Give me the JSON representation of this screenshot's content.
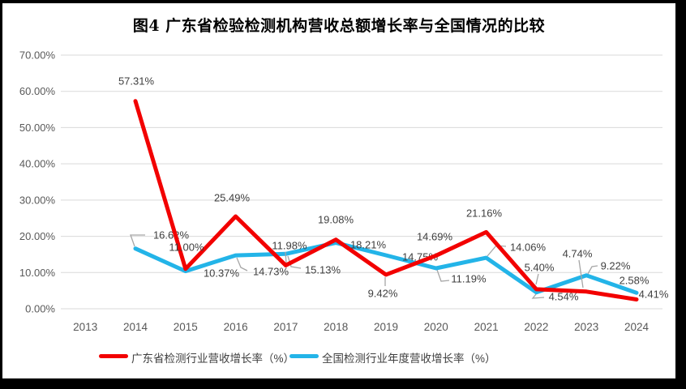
{
  "title": "图4  广东省检验检测机构营收总额增长率与全国情况的比较",
  "chart_data": {
    "type": "line",
    "categories": [
      "2013",
      "2014",
      "2015",
      "2016",
      "2017",
      "2018",
      "2019",
      "2020",
      "2021",
      "2022",
      "2023",
      "2024"
    ],
    "series": [
      {
        "name": "广东省检测行业营收增长率（%）",
        "color": "#f20000",
        "values": [
          null,
          57.31,
          11,
          25.49,
          11.98,
          19.08,
          9.42,
          14.69,
          21.16,
          5.4,
          4.74,
          2.58
        ]
      },
      {
        "name": "全国检测行业年度营收增长率（%）",
        "color": "#23b4e8",
        "values": [
          null,
          16.62,
          10.37,
          14.73,
          15.13,
          18.21,
          14.75,
          11.19,
          14.06,
          4.54,
          9.22,
          4.41
        ]
      }
    ],
    "yticks": [
      "0.00%",
      "10.00%",
      "20.00%",
      "30.00%",
      "40.00%",
      "50.00%",
      "60.00%",
      "70.00%"
    ],
    "ylim": [
      0,
      70
    ],
    "xlabel": "",
    "ylabel": "",
    "grid": true,
    "legend_position": "bottom",
    "data_label_format": "0.00%"
  },
  "colors": {
    "gridline": "#d9d9d9",
    "axis_text": "#595959",
    "label_text": "#3f3f3f",
    "leader": "#a6a6a6",
    "frame": "#000000",
    "background": "#ffffff"
  }
}
